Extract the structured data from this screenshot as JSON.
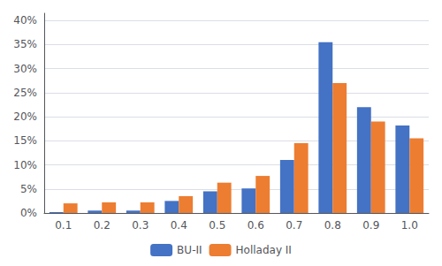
{
  "chart_data": {
    "type": "bar",
    "categories": [
      "0.1",
      "0.2",
      "0.3",
      "0.4",
      "0.5",
      "0.6",
      "0.7",
      "0.8",
      "0.9",
      "1.0"
    ],
    "series": [
      {
        "name": "BU-II",
        "color": "#4472C4",
        "values": [
          0.002,
          0.005,
          0.005,
          0.025,
          0.045,
          0.051,
          0.11,
          0.355,
          0.22,
          0.182
        ]
      },
      {
        "name": "Holladay II",
        "color": "#ED7D31",
        "values": [
          0.02,
          0.022,
          0.022,
          0.035,
          0.063,
          0.077,
          0.145,
          0.27,
          0.19,
          0.155
        ]
      }
    ],
    "ylim": [
      0,
      0.415
    ],
    "yticks": [
      {
        "value": 0.0,
        "label": "0%"
      },
      {
        "value": 0.05,
        "label": "5%"
      },
      {
        "value": 0.1,
        "label": "10%"
      },
      {
        "value": 0.15,
        "label": "15%"
      },
      {
        "value": 0.2,
        "label": "20%"
      },
      {
        "value": 0.25,
        "label": "25%"
      },
      {
        "value": 0.3,
        "label": "30%"
      },
      {
        "value": 0.35,
        "label": "35%"
      },
      {
        "value": 0.4,
        "label": "40%"
      }
    ],
    "grid": true,
    "legend": "bottom"
  }
}
